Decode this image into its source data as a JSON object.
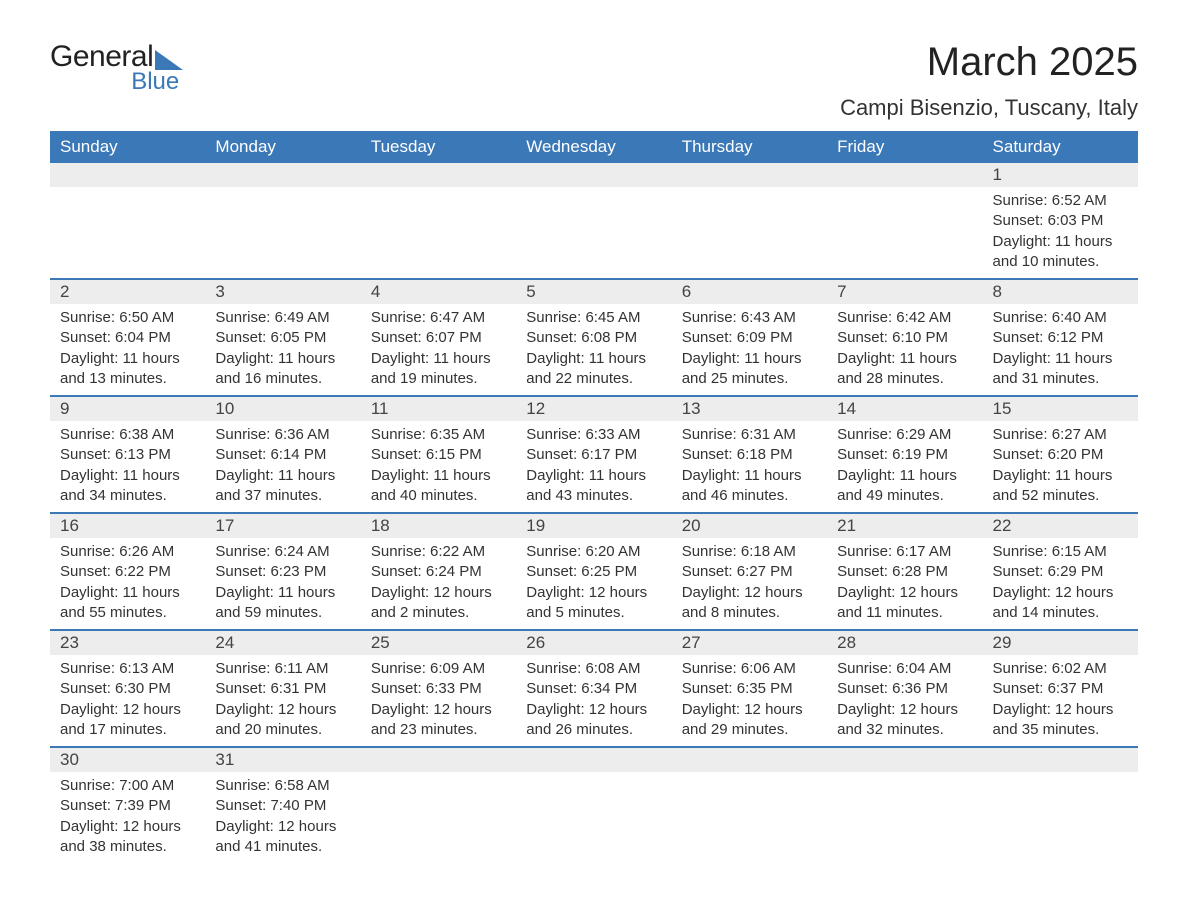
{
  "logo": {
    "general": "General",
    "blue": "Blue"
  },
  "header": {
    "month_title": "March 2025",
    "location": "Campi Bisenzio, Tuscany, Italy"
  },
  "style": {
    "header_bg": "#3a78b8",
    "header_fg": "#ffffff",
    "daynum_bg": "#ededed",
    "row_divider": "#3a78b8",
    "text_color": "#333333",
    "page_bg": "#ffffff",
    "font_family": "Arial",
    "title_fontsize_pt": 30,
    "location_fontsize_pt": 17,
    "dayname_fontsize_pt": 13,
    "body_fontsize_pt": 11
  },
  "day_names": [
    "Sunday",
    "Monday",
    "Tuesday",
    "Wednesday",
    "Thursday",
    "Friday",
    "Saturday"
  ],
  "weeks": [
    [
      null,
      null,
      null,
      null,
      null,
      null,
      {
        "n": "1",
        "sr": "Sunrise: 6:52 AM",
        "ss": "Sunset: 6:03 PM",
        "d1": "Daylight: 11 hours",
        "d2": "and 10 minutes."
      }
    ],
    [
      {
        "n": "2",
        "sr": "Sunrise: 6:50 AM",
        "ss": "Sunset: 6:04 PM",
        "d1": "Daylight: 11 hours",
        "d2": "and 13 minutes."
      },
      {
        "n": "3",
        "sr": "Sunrise: 6:49 AM",
        "ss": "Sunset: 6:05 PM",
        "d1": "Daylight: 11 hours",
        "d2": "and 16 minutes."
      },
      {
        "n": "4",
        "sr": "Sunrise: 6:47 AM",
        "ss": "Sunset: 6:07 PM",
        "d1": "Daylight: 11 hours",
        "d2": "and 19 minutes."
      },
      {
        "n": "5",
        "sr": "Sunrise: 6:45 AM",
        "ss": "Sunset: 6:08 PM",
        "d1": "Daylight: 11 hours",
        "d2": "and 22 minutes."
      },
      {
        "n": "6",
        "sr": "Sunrise: 6:43 AM",
        "ss": "Sunset: 6:09 PM",
        "d1": "Daylight: 11 hours",
        "d2": "and 25 minutes."
      },
      {
        "n": "7",
        "sr": "Sunrise: 6:42 AM",
        "ss": "Sunset: 6:10 PM",
        "d1": "Daylight: 11 hours",
        "d2": "and 28 minutes."
      },
      {
        "n": "8",
        "sr": "Sunrise: 6:40 AM",
        "ss": "Sunset: 6:12 PM",
        "d1": "Daylight: 11 hours",
        "d2": "and 31 minutes."
      }
    ],
    [
      {
        "n": "9",
        "sr": "Sunrise: 6:38 AM",
        "ss": "Sunset: 6:13 PM",
        "d1": "Daylight: 11 hours",
        "d2": "and 34 minutes."
      },
      {
        "n": "10",
        "sr": "Sunrise: 6:36 AM",
        "ss": "Sunset: 6:14 PM",
        "d1": "Daylight: 11 hours",
        "d2": "and 37 minutes."
      },
      {
        "n": "11",
        "sr": "Sunrise: 6:35 AM",
        "ss": "Sunset: 6:15 PM",
        "d1": "Daylight: 11 hours",
        "d2": "and 40 minutes."
      },
      {
        "n": "12",
        "sr": "Sunrise: 6:33 AM",
        "ss": "Sunset: 6:17 PM",
        "d1": "Daylight: 11 hours",
        "d2": "and 43 minutes."
      },
      {
        "n": "13",
        "sr": "Sunrise: 6:31 AM",
        "ss": "Sunset: 6:18 PM",
        "d1": "Daylight: 11 hours",
        "d2": "and 46 minutes."
      },
      {
        "n": "14",
        "sr": "Sunrise: 6:29 AM",
        "ss": "Sunset: 6:19 PM",
        "d1": "Daylight: 11 hours",
        "d2": "and 49 minutes."
      },
      {
        "n": "15",
        "sr": "Sunrise: 6:27 AM",
        "ss": "Sunset: 6:20 PM",
        "d1": "Daylight: 11 hours",
        "d2": "and 52 minutes."
      }
    ],
    [
      {
        "n": "16",
        "sr": "Sunrise: 6:26 AM",
        "ss": "Sunset: 6:22 PM",
        "d1": "Daylight: 11 hours",
        "d2": "and 55 minutes."
      },
      {
        "n": "17",
        "sr": "Sunrise: 6:24 AM",
        "ss": "Sunset: 6:23 PM",
        "d1": "Daylight: 11 hours",
        "d2": "and 59 minutes."
      },
      {
        "n": "18",
        "sr": "Sunrise: 6:22 AM",
        "ss": "Sunset: 6:24 PM",
        "d1": "Daylight: 12 hours",
        "d2": "and 2 minutes."
      },
      {
        "n": "19",
        "sr": "Sunrise: 6:20 AM",
        "ss": "Sunset: 6:25 PM",
        "d1": "Daylight: 12 hours",
        "d2": "and 5 minutes."
      },
      {
        "n": "20",
        "sr": "Sunrise: 6:18 AM",
        "ss": "Sunset: 6:27 PM",
        "d1": "Daylight: 12 hours",
        "d2": "and 8 minutes."
      },
      {
        "n": "21",
        "sr": "Sunrise: 6:17 AM",
        "ss": "Sunset: 6:28 PM",
        "d1": "Daylight: 12 hours",
        "d2": "and 11 minutes."
      },
      {
        "n": "22",
        "sr": "Sunrise: 6:15 AM",
        "ss": "Sunset: 6:29 PM",
        "d1": "Daylight: 12 hours",
        "d2": "and 14 minutes."
      }
    ],
    [
      {
        "n": "23",
        "sr": "Sunrise: 6:13 AM",
        "ss": "Sunset: 6:30 PM",
        "d1": "Daylight: 12 hours",
        "d2": "and 17 minutes."
      },
      {
        "n": "24",
        "sr": "Sunrise: 6:11 AM",
        "ss": "Sunset: 6:31 PM",
        "d1": "Daylight: 12 hours",
        "d2": "and 20 minutes."
      },
      {
        "n": "25",
        "sr": "Sunrise: 6:09 AM",
        "ss": "Sunset: 6:33 PM",
        "d1": "Daylight: 12 hours",
        "d2": "and 23 minutes."
      },
      {
        "n": "26",
        "sr": "Sunrise: 6:08 AM",
        "ss": "Sunset: 6:34 PM",
        "d1": "Daylight: 12 hours",
        "d2": "and 26 minutes."
      },
      {
        "n": "27",
        "sr": "Sunrise: 6:06 AM",
        "ss": "Sunset: 6:35 PM",
        "d1": "Daylight: 12 hours",
        "d2": "and 29 minutes."
      },
      {
        "n": "28",
        "sr": "Sunrise: 6:04 AM",
        "ss": "Sunset: 6:36 PM",
        "d1": "Daylight: 12 hours",
        "d2": "and 32 minutes."
      },
      {
        "n": "29",
        "sr": "Sunrise: 6:02 AM",
        "ss": "Sunset: 6:37 PM",
        "d1": "Daylight: 12 hours",
        "d2": "and 35 minutes."
      }
    ],
    [
      {
        "n": "30",
        "sr": "Sunrise: 7:00 AM",
        "ss": "Sunset: 7:39 PM",
        "d1": "Daylight: 12 hours",
        "d2": "and 38 minutes."
      },
      {
        "n": "31",
        "sr": "Sunrise: 6:58 AM",
        "ss": "Sunset: 7:40 PM",
        "d1": "Daylight: 12 hours",
        "d2": "and 41 minutes."
      },
      null,
      null,
      null,
      null,
      null
    ]
  ]
}
